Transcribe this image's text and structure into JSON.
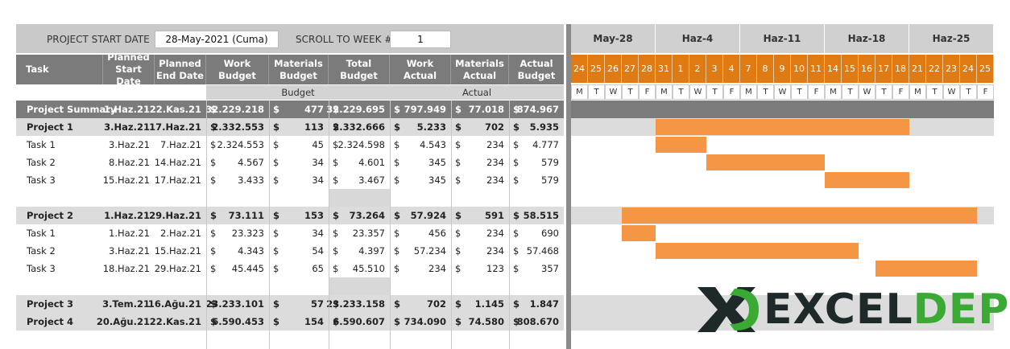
{
  "header": {
    "start_label": "PROJECT START DATE",
    "start_value": "28-May-2021 (Cuma)",
    "scroll_label": "SCROLL TO WEEK #",
    "scroll_value": "1"
  },
  "columns": [
    {
      "label": "Task"
    },
    {
      "label": "Planned Start Date"
    },
    {
      "label": "Planned End Date"
    },
    {
      "label": "Work Budget"
    },
    {
      "label": "Materials Budget"
    },
    {
      "label": "Total Budget"
    },
    {
      "label": "Work Actual"
    },
    {
      "label": "Materials Actual"
    },
    {
      "label": "Actual Budget"
    }
  ],
  "groups": {
    "budget": "Budget",
    "actual": "Actual"
  },
  "currency": "$",
  "rows": [
    {
      "kind": "summary",
      "task": "Project Summary",
      "start": "1.Haz.21",
      "end": "22.Kas.21",
      "wb": "32.229.218",
      "mb": "477",
      "tb": "32.229.695",
      "wa": "797.949",
      "ma": "77.018",
      "ab": "874.967",
      "bar": null
    },
    {
      "kind": "project",
      "task": "Project 1",
      "start": "3.Haz.21",
      "end": "17.Haz.21",
      "wb": "2.332.553",
      "mb": "113",
      "tb": "2.332.666",
      "wa": "5.233",
      "ma": "702",
      "ab": "5.935",
      "bar": [
        6,
        20
      ]
    },
    {
      "kind": "task",
      "task": "Task 1",
      "start": "3.Haz.21",
      "end": "7.Haz.21",
      "wb": "2.324.553",
      "mb": "45",
      "tb": "2.324.598",
      "wa": "4.543",
      "ma": "234",
      "ab": "4.777",
      "bar": [
        6,
        8
      ]
    },
    {
      "kind": "task",
      "task": "Task 2",
      "start": "8.Haz.21",
      "end": "14.Haz.21",
      "wb": "4.567",
      "mb": "34",
      "tb": "4.601",
      "wa": "345",
      "ma": "234",
      "ab": "579",
      "bar": [
        9,
        15
      ]
    },
    {
      "kind": "task",
      "task": "Task 3",
      "start": "15.Haz.21",
      "end": "17.Haz.21",
      "wb": "3.433",
      "mb": "34",
      "tb": "3.467",
      "wa": "345",
      "ma": "234",
      "ab": "579",
      "bar": [
        16,
        20
      ]
    },
    {
      "kind": "blank"
    },
    {
      "kind": "project",
      "task": "Project 2",
      "start": "1.Haz.21",
      "end": "29.Haz.21",
      "wb": "73.111",
      "mb": "153",
      "tb": "73.264",
      "wa": "57.924",
      "ma": "591",
      "ab": "58.515",
      "bar": [
        4,
        24
      ]
    },
    {
      "kind": "task",
      "task": "Task 1",
      "start": "1.Haz.21",
      "end": "2.Haz.21",
      "wb": "23.323",
      "mb": "34",
      "tb": "23.357",
      "wa": "456",
      "ma": "234",
      "ab": "690",
      "bar": [
        4,
        5
      ]
    },
    {
      "kind": "task",
      "task": "Task 2",
      "start": "3.Haz.21",
      "end": "15.Haz.21",
      "wb": "4.343",
      "mb": "54",
      "tb": "4.397",
      "wa": "57.234",
      "ma": "234",
      "ab": "57.468",
      "bar": [
        6,
        17
      ]
    },
    {
      "kind": "task",
      "task": "Task 3",
      "start": "18.Haz.21",
      "end": "29.Haz.21",
      "wb": "45.445",
      "mb": "65",
      "tb": "45.510",
      "wa": "234",
      "ma": "123",
      "ab": "357",
      "bar": [
        19,
        24
      ]
    },
    {
      "kind": "blank"
    },
    {
      "kind": "project",
      "task": "Project 3",
      "start": "3.Tem.21",
      "end": "16.Ağu.21",
      "wb": "23.233.101",
      "mb": "57",
      "tb": "23.233.158",
      "wa": "702",
      "ma": "1.145",
      "ab": "1.847",
      "bar": null
    },
    {
      "kind": "project",
      "task": "Project 4",
      "start": "20.Ağu.21",
      "end": "22.Kas.21",
      "wb": "6.590.453",
      "mb": "154",
      "tb": "6.590.607",
      "wa": "734.090",
      "ma": "74.580",
      "ab": "808.670",
      "bar": null
    }
  ],
  "gantt": {
    "weeks": [
      "May-28",
      "Haz-4",
      "Haz-11",
      "Haz-18",
      "Haz-25"
    ],
    "days": [
      "24",
      "25",
      "26",
      "27",
      "28",
      "31",
      "1",
      "2",
      "3",
      "4",
      "7",
      "8",
      "9",
      "10",
      "11",
      "14",
      "15",
      "16",
      "17",
      "18",
      "21",
      "22",
      "23",
      "24",
      "25"
    ],
    "dow": [
      "M",
      "T",
      "W",
      "T",
      "F",
      "M",
      "T",
      "W",
      "T",
      "F",
      "M",
      "T",
      "W",
      "T",
      "F",
      "M",
      "T",
      "W",
      "T",
      "F",
      "M",
      "T",
      "W",
      "T",
      "F"
    ]
  },
  "logo": {
    "text_a": "EXCEL",
    "text_b": "DEPO",
    "dark": "#1e2a2a",
    "green": "#3aaa35"
  },
  "colors": {
    "orange": "#e07b14",
    "bar": "#f59644"
  }
}
